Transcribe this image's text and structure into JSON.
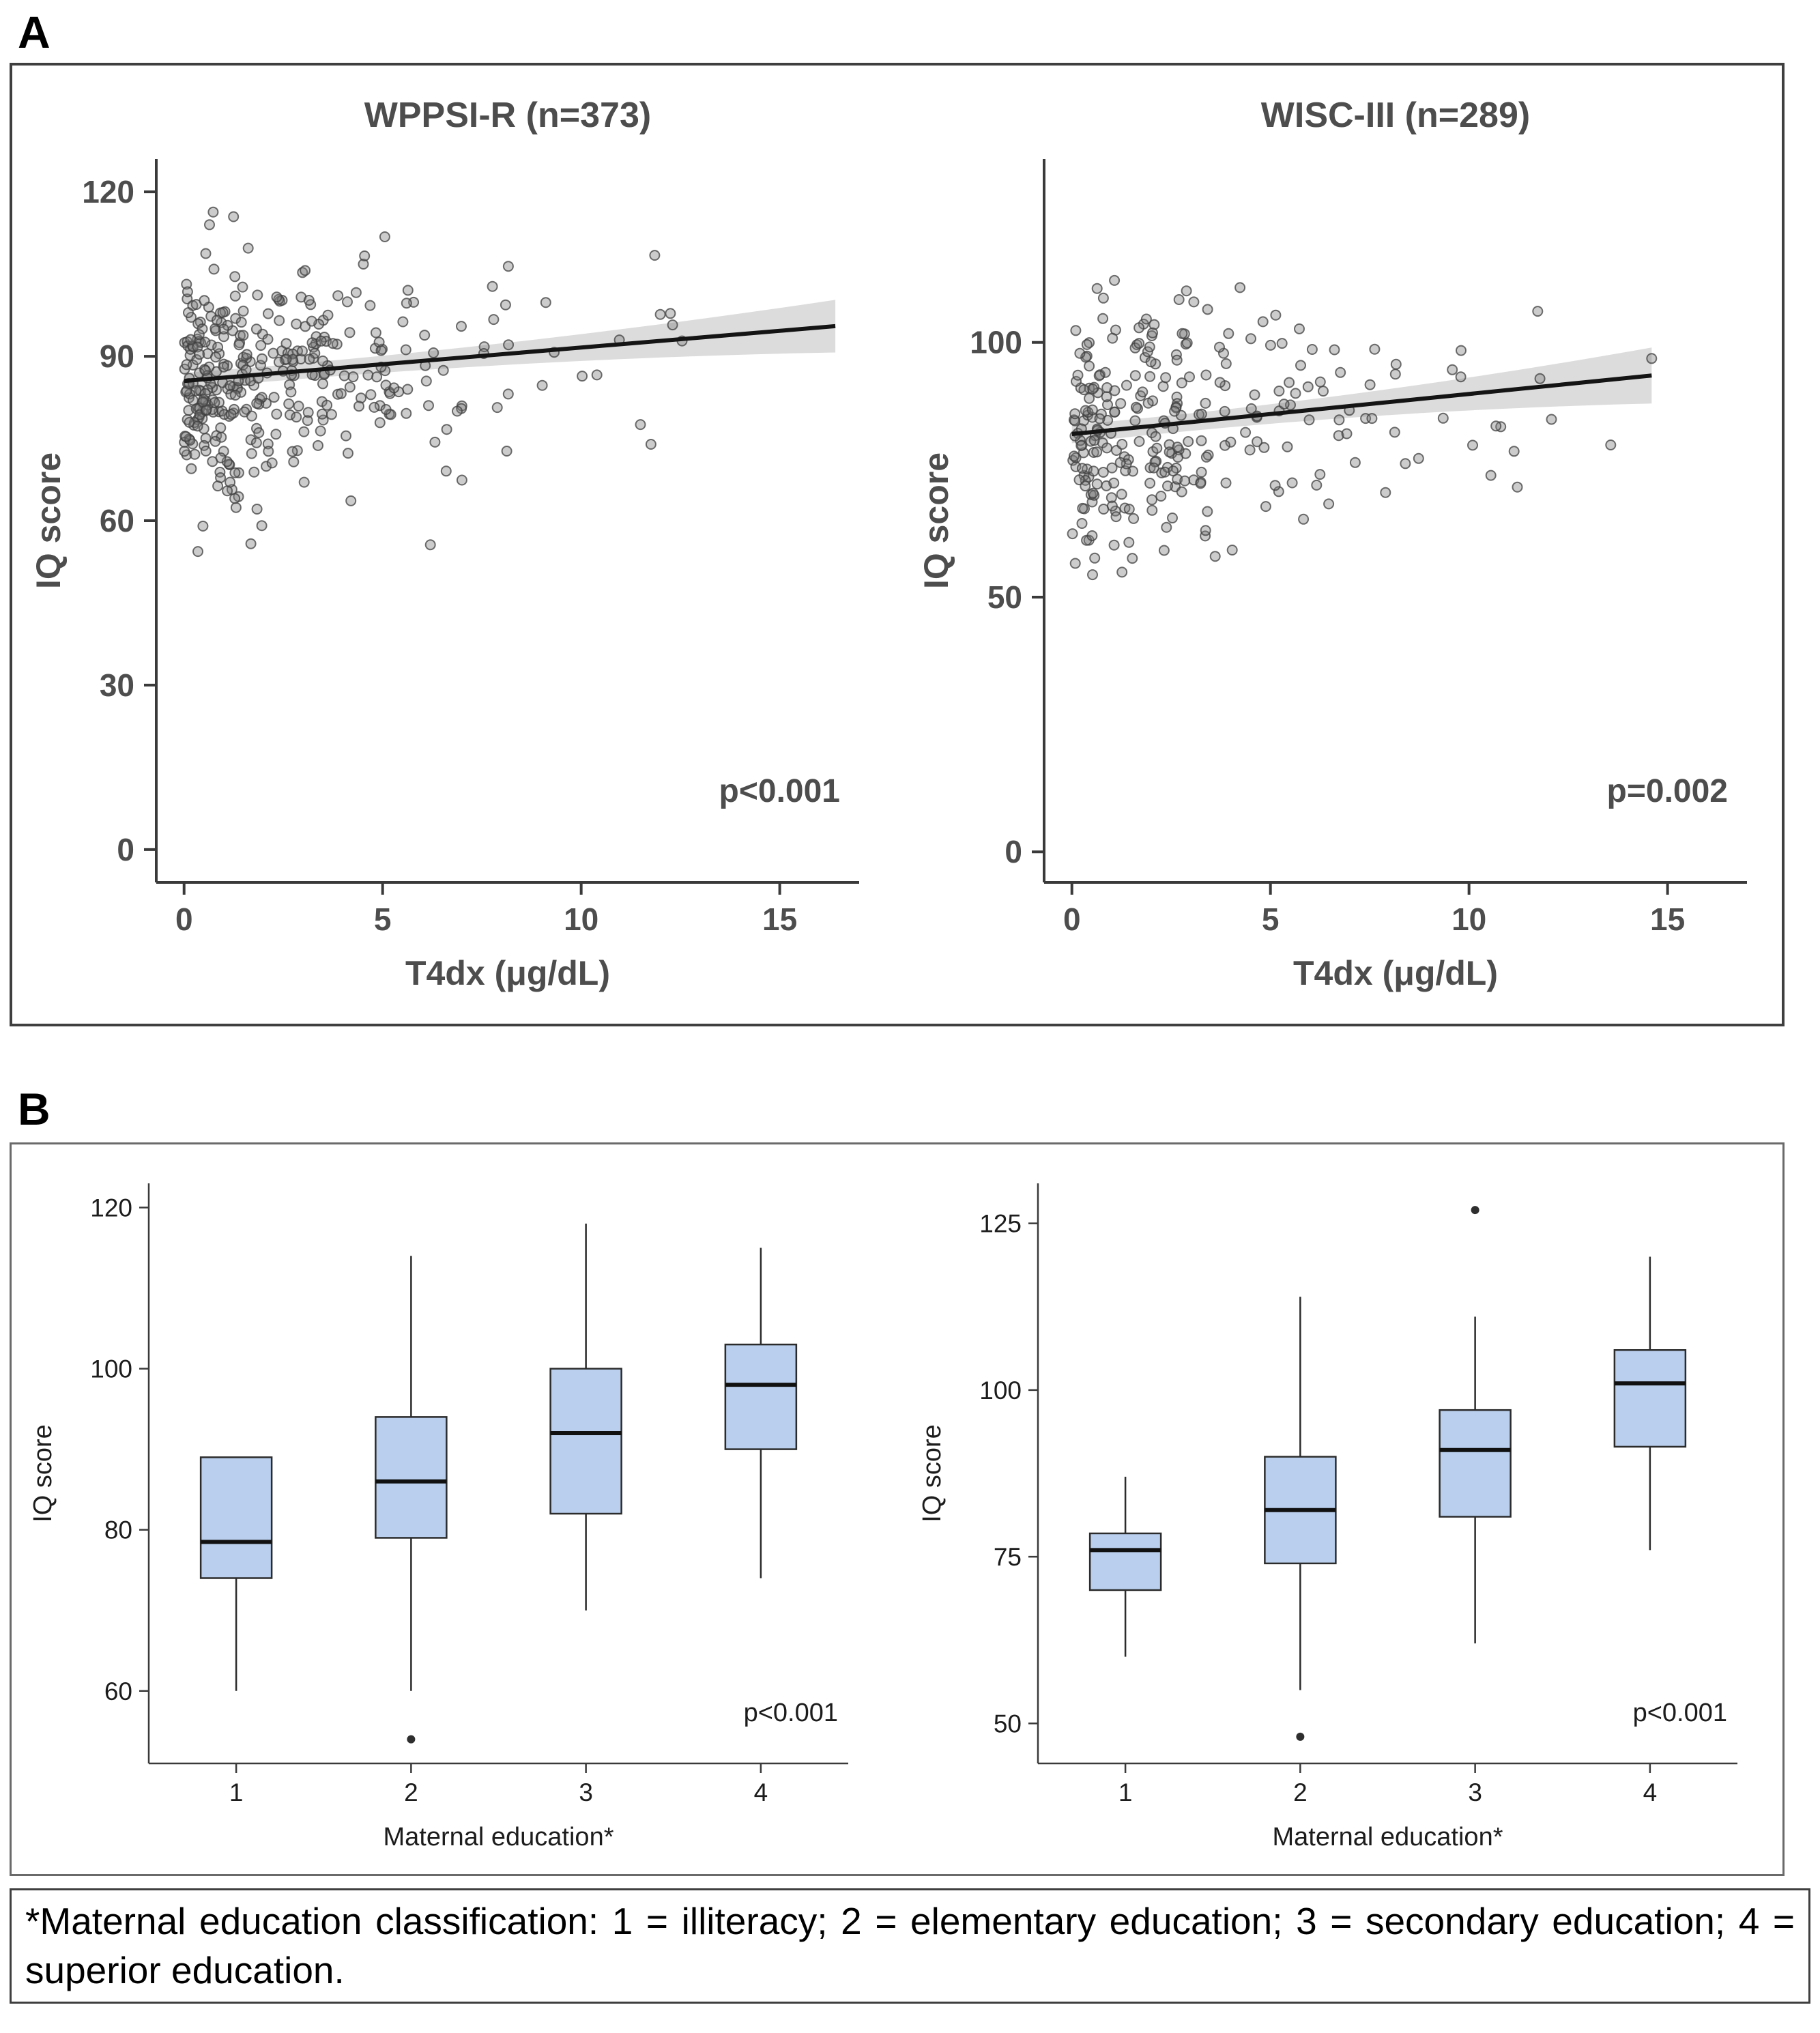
{
  "panels": {
    "a": {
      "label": "A"
    },
    "b": {
      "label": "B"
    }
  },
  "footnote": {
    "text": "*Maternal education classification: 1 = illiteracy; 2 = elementary education; 3 = secondary education; 4 = superior education."
  },
  "chart_data": [
    {
      "id": "scatter-wppsi",
      "type": "scatter",
      "title": "WPPSI-R (n=373)",
      "n": 373,
      "xlabel": "T4dx (μg/dL)",
      "ylabel": "IQ score",
      "p_label": "p<0.001",
      "xlim": [
        -0.7,
        17.0
      ],
      "ylim": [
        -6,
        126
      ],
      "xticks": [
        0,
        5,
        10,
        15
      ],
      "yticks": [
        0,
        30,
        60,
        90,
        120
      ],
      "grid": false,
      "legend": "none",
      "regression": {
        "x0": 0,
        "y0": 85.5,
        "x1": 16.4,
        "y1": 95.5
      },
      "ci_band": {
        "center": 2.0,
        "base": 1.4,
        "end": 4.8
      },
      "points_model": {
        "seed": 42,
        "n": 373,
        "x_exp_mean": 2.7,
        "x_max": 16.4,
        "y_intercept": 84.5,
        "y_slope": 0.6,
        "y_sd": 11.0,
        "y_min": 54,
        "y_max": 118
      }
    },
    {
      "id": "scatter-wisc",
      "type": "scatter",
      "title": "WISC-III (n=289)",
      "n": 289,
      "xlabel": "T4dx (μg/dL)",
      "ylabel": "IQ score",
      "p_label": "p=0.002",
      "xlim": [
        -0.7,
        17.0
      ],
      "ylim": [
        -6,
        136
      ],
      "xticks": [
        0,
        5,
        10,
        15
      ],
      "yticks": [
        0,
        50,
        100
      ],
      "grid": false,
      "legend": "none",
      "regression": {
        "x0": 0,
        "y0": 82.0,
        "x1": 14.6,
        "y1": 93.5
      },
      "ci_band": {
        "center": 2.0,
        "base": 1.7,
        "end": 5.5
      },
      "points_model": {
        "seed": 7,
        "n": 289,
        "x_exp_mean": 2.9,
        "x_max": 14.6,
        "y_intercept": 81.0,
        "y_slope": 0.8,
        "y_sd": 12.0,
        "y_min": 48,
        "y_max": 124
      }
    },
    {
      "id": "box-wppsi",
      "type": "box",
      "xlabel": "Maternal education*",
      "ylabel": "IQ score",
      "p_label": "p<0.001",
      "categories": [
        "1",
        "2",
        "3",
        "4"
      ],
      "ylim": [
        51,
        123
      ],
      "yticks": [
        60,
        80,
        100,
        120
      ],
      "grid": false,
      "boxes": [
        {
          "category": "1",
          "low": 60,
          "q1": 74,
          "median": 78.5,
          "q3": 89,
          "high": 89,
          "outliers": []
        },
        {
          "category": "2",
          "low": 60,
          "q1": 79,
          "median": 86,
          "q3": 94,
          "high": 114,
          "outliers": [
            54
          ]
        },
        {
          "category": "3",
          "low": 70,
          "q1": 82,
          "median": 92,
          "q3": 100,
          "high": 118,
          "outliers": []
        },
        {
          "category": "4",
          "low": 74,
          "q1": 90,
          "median": 98,
          "q3": 103,
          "high": 115,
          "outliers": []
        }
      ]
    },
    {
      "id": "box-wisc",
      "type": "box",
      "xlabel": "Maternal education*",
      "ylabel": "IQ score",
      "p_label": "p<0.001",
      "categories": [
        "1",
        "2",
        "3",
        "4"
      ],
      "ylim": [
        44,
        131
      ],
      "yticks": [
        50,
        75,
        100,
        125
      ],
      "grid": false,
      "boxes": [
        {
          "category": "1",
          "low": 60,
          "q1": 70,
          "median": 76,
          "q3": 78.5,
          "high": 87,
          "outliers": []
        },
        {
          "category": "2",
          "low": 55,
          "q1": 74,
          "median": 82,
          "q3": 90,
          "high": 114,
          "outliers": [
            48
          ]
        },
        {
          "category": "3",
          "low": 62,
          "q1": 81,
          "median": 91,
          "q3": 97,
          "high": 111,
          "outliers": [
            127
          ]
        },
        {
          "category": "4",
          "low": 76,
          "q1": 91.5,
          "median": 101,
          "q3": 106,
          "high": 120,
          "outliers": []
        }
      ]
    }
  ],
  "colors": {
    "panel_a_text": "#4d4d4d",
    "panel_b_text": "#1c1c1c",
    "scatter_point_fill": "#787878",
    "scatter_point_stroke": "#3f3f3f",
    "regression_line": "#141414",
    "ci_band": "#c4c4c4",
    "box_fill": "#b9cfed",
    "box_stroke": "#2b2b2b",
    "axis": "#3a3a3a"
  }
}
